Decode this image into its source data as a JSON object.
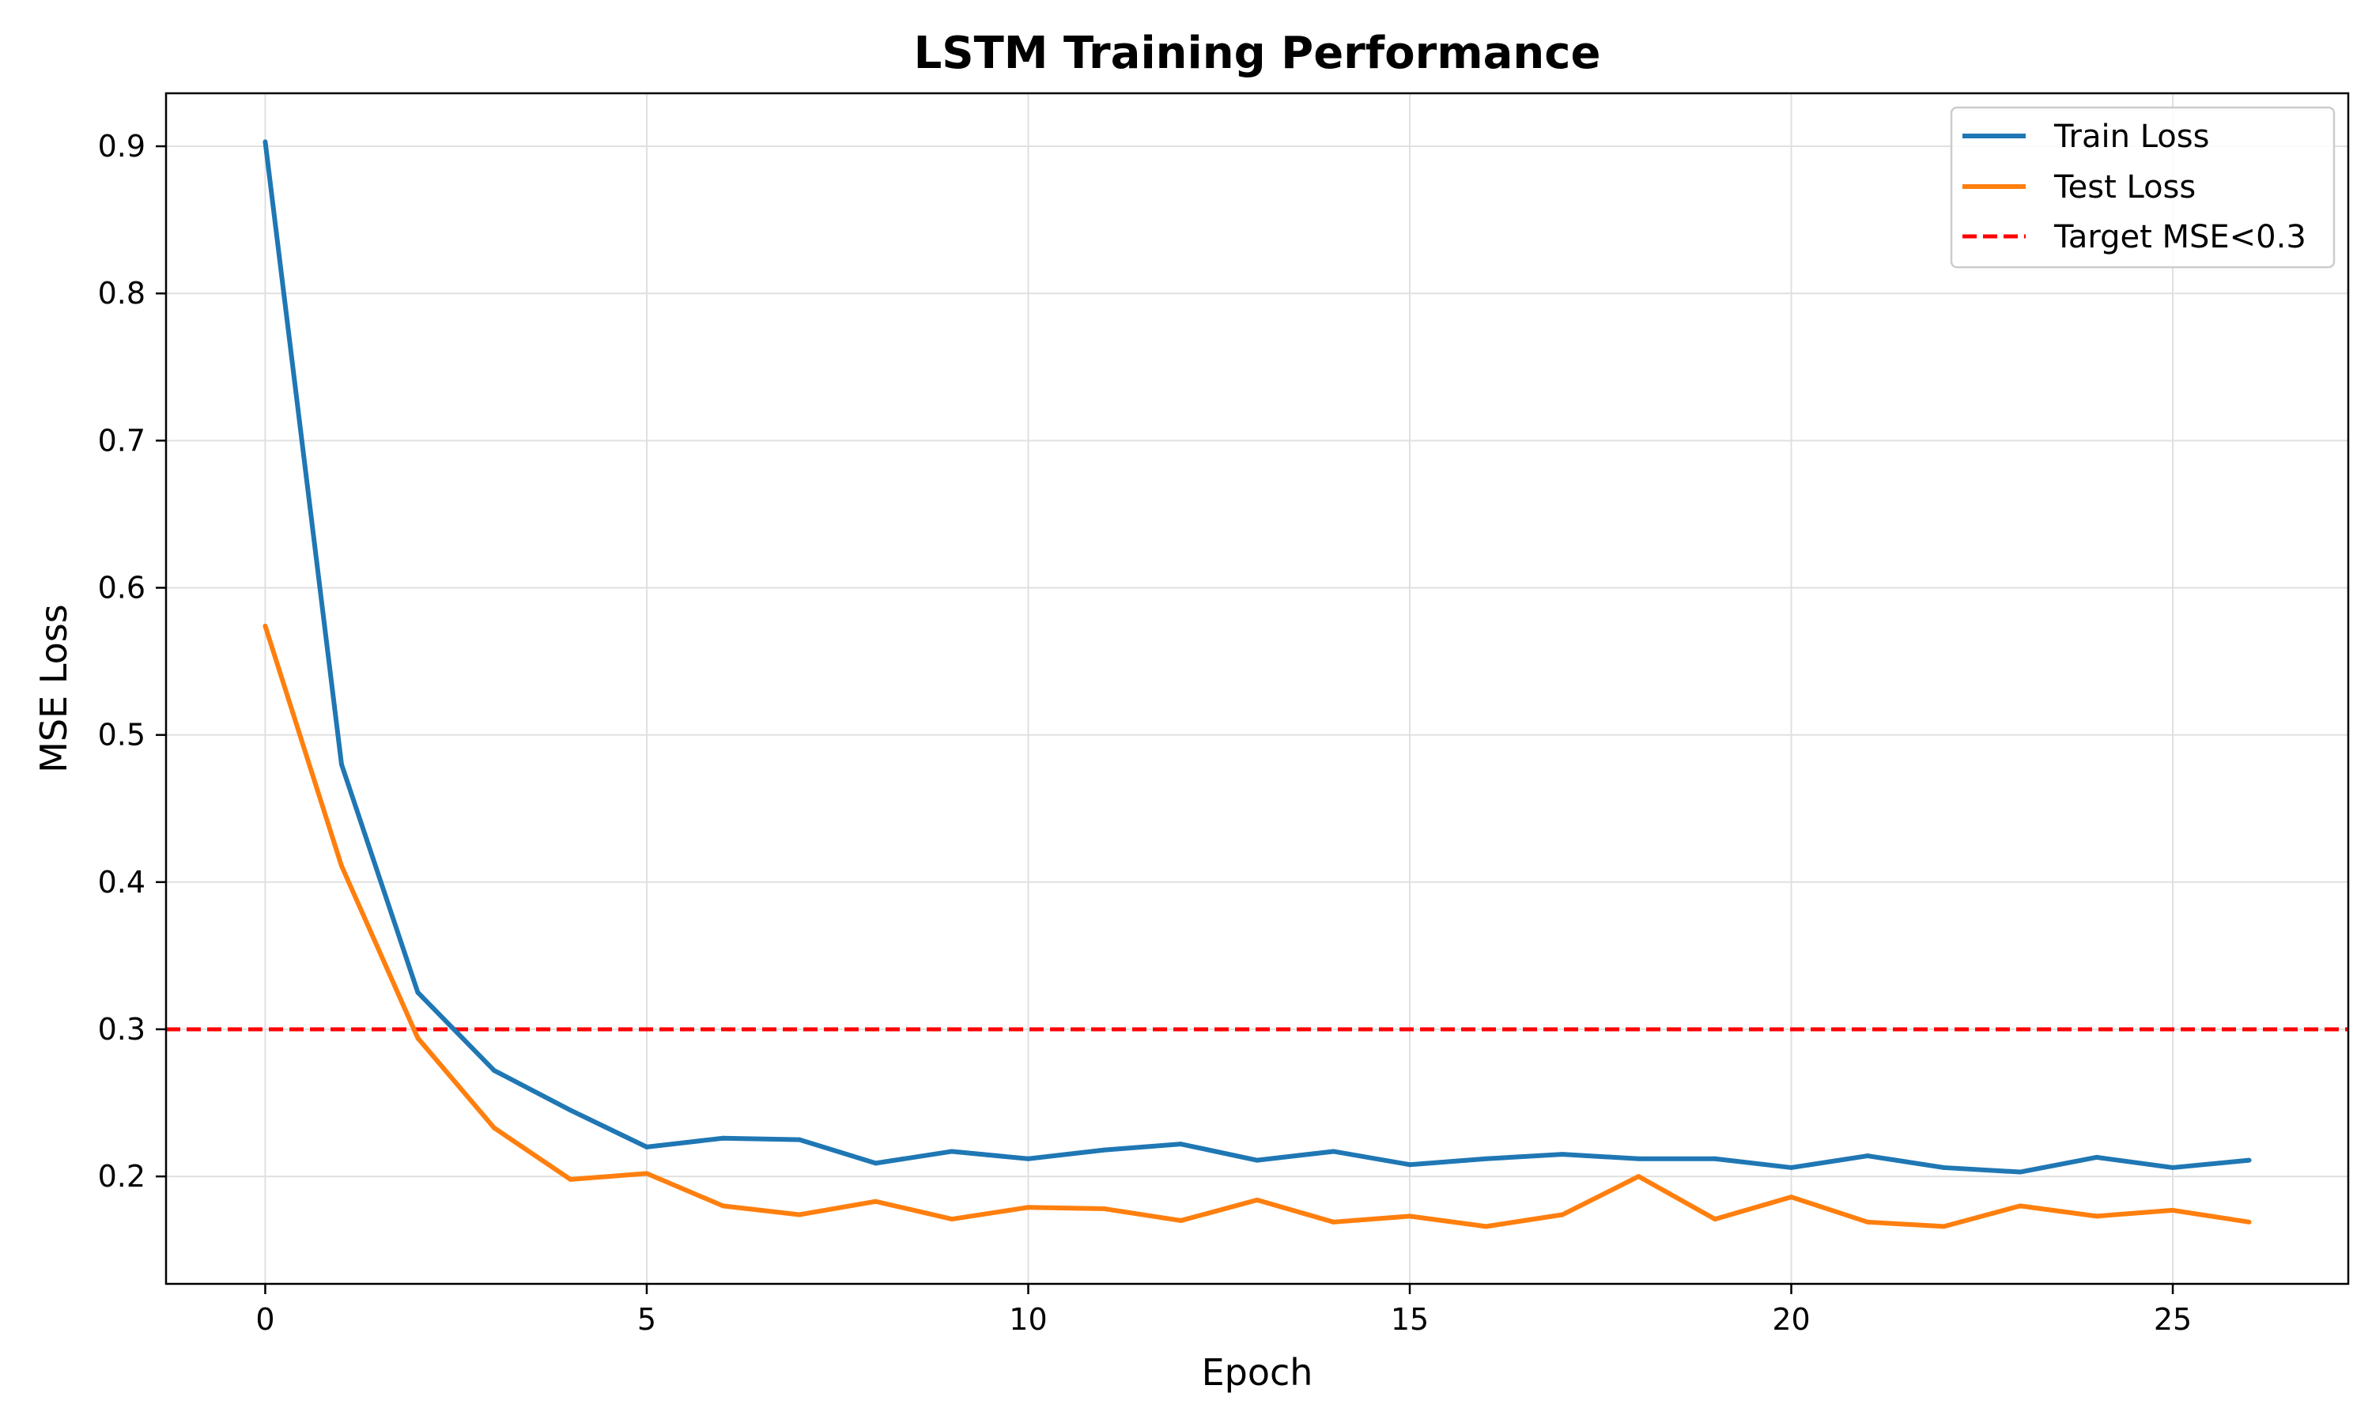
{
  "chart_data": {
    "type": "line",
    "title": "LSTM Training Performance",
    "xlabel": "Epoch",
    "ylabel": "MSE Loss",
    "xlim": [
      -1.3,
      27.3
    ],
    "ylim": [
      0.127,
      0.936
    ],
    "xticks": [
      0,
      5,
      10,
      15,
      20,
      25
    ],
    "yticks": [
      0.2,
      0.3,
      0.4,
      0.5,
      0.6,
      0.7,
      0.8,
      0.9
    ],
    "xtick_labels": [
      "0",
      "5",
      "10",
      "15",
      "20",
      "25"
    ],
    "ytick_labels": [
      "0.2",
      "0.3",
      "0.4",
      "0.5",
      "0.6",
      "0.7",
      "0.8",
      "0.9"
    ],
    "grid": true,
    "legend_position": "top-right",
    "x": [
      0,
      1,
      2,
      3,
      4,
      5,
      6,
      7,
      8,
      9,
      10,
      11,
      12,
      13,
      14,
      15,
      16,
      17,
      18,
      19,
      20,
      21,
      22,
      23,
      24,
      25,
      26
    ],
    "series": [
      {
        "name": "Train Loss",
        "color": "#1f77b4",
        "style": "solid",
        "values": [
          0.903,
          0.48,
          0.325,
          0.272,
          0.245,
          0.22,
          0.226,
          0.225,
          0.209,
          0.217,
          0.212,
          0.218,
          0.222,
          0.211,
          0.217,
          0.208,
          0.212,
          0.215,
          0.212,
          0.212,
          0.206,
          0.214,
          0.206,
          0.203,
          0.213,
          0.206,
          0.211
        ]
      },
      {
        "name": "Test Loss",
        "color": "#ff7f0e",
        "style": "solid",
        "values": [
          0.574,
          0.411,
          0.294,
          0.233,
          0.198,
          0.202,
          0.18,
          0.174,
          0.183,
          0.171,
          0.179,
          0.178,
          0.17,
          0.184,
          0.169,
          0.173,
          0.166,
          0.174,
          0.2,
          0.171,
          0.186,
          0.169,
          0.166,
          0.18,
          0.173,
          0.177,
          0.169
        ]
      }
    ],
    "reference_lines": [
      {
        "name": "Target MSE<0.3",
        "y": 0.3,
        "color": "#ff0000",
        "style": "dashed"
      }
    ]
  }
}
